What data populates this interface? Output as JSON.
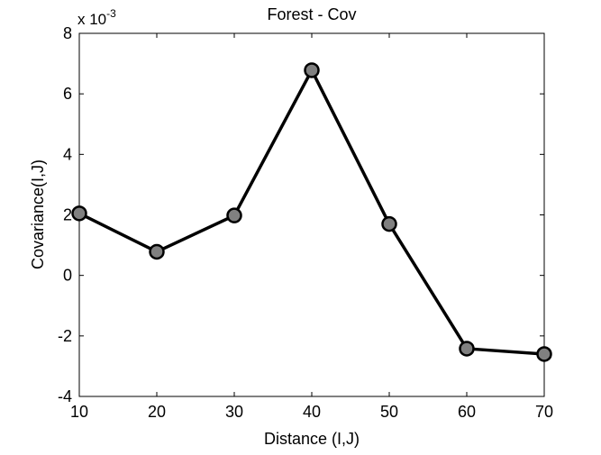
{
  "chart_data": {
    "type": "line",
    "title": "Forest - Cov",
    "xlabel": "Distance (I,J)",
    "ylabel": "Covariance(I,J)",
    "y_multiplier_label": "x 10",
    "y_multiplier_exponent": "-3",
    "xlim": [
      10,
      70
    ],
    "ylim": [
      -4,
      8
    ],
    "xticks": [
      10,
      20,
      30,
      40,
      50,
      60,
      70
    ],
    "yticks": [
      -4,
      -2,
      0,
      2,
      4,
      6,
      8
    ],
    "x": [
      10,
      20,
      30,
      40,
      50,
      60,
      70
    ],
    "series": [
      {
        "values": [
          2.05,
          0.78,
          1.98,
          6.78,
          1.7,
          -2.42,
          -2.6
        ],
        "line_color": "#000000",
        "marker_fill": "#808080",
        "marker_edge": "#000000"
      }
    ],
    "grid": false,
    "legend": "none"
  }
}
